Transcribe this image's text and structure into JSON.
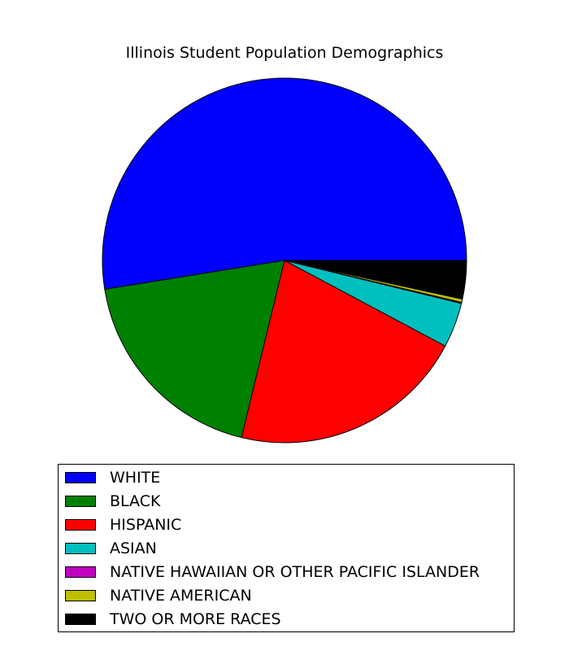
{
  "chart_data": {
    "type": "pie",
    "title": "Illinois Student Population Demographics",
    "slices": [
      {
        "label": "WHITE",
        "value": 54.0,
        "color": "#0000ff"
      },
      {
        "label": "BLACK",
        "value": 19.2,
        "color": "#008000"
      },
      {
        "label": "HISPANIC",
        "value": 21.6,
        "color": "#ff0000"
      },
      {
        "label": "ASIAN",
        "value": 4.1,
        "color": "#00bfbf"
      },
      {
        "label": "NATIVE HAWAIIAN OR OTHER PACIFIC ISLANDER",
        "value": 0.1,
        "color": "#bf00bf"
      },
      {
        "label": "NATIVE AMERICAN",
        "value": 0.3,
        "color": "#bfbf00"
      },
      {
        "label": "TWO OR MORE RACES",
        "value": 3.5,
        "color": "#000000"
      }
    ],
    "start_angle": "3 o'clock",
    "direction": "counterclockwise",
    "legend_placement": "below"
  }
}
